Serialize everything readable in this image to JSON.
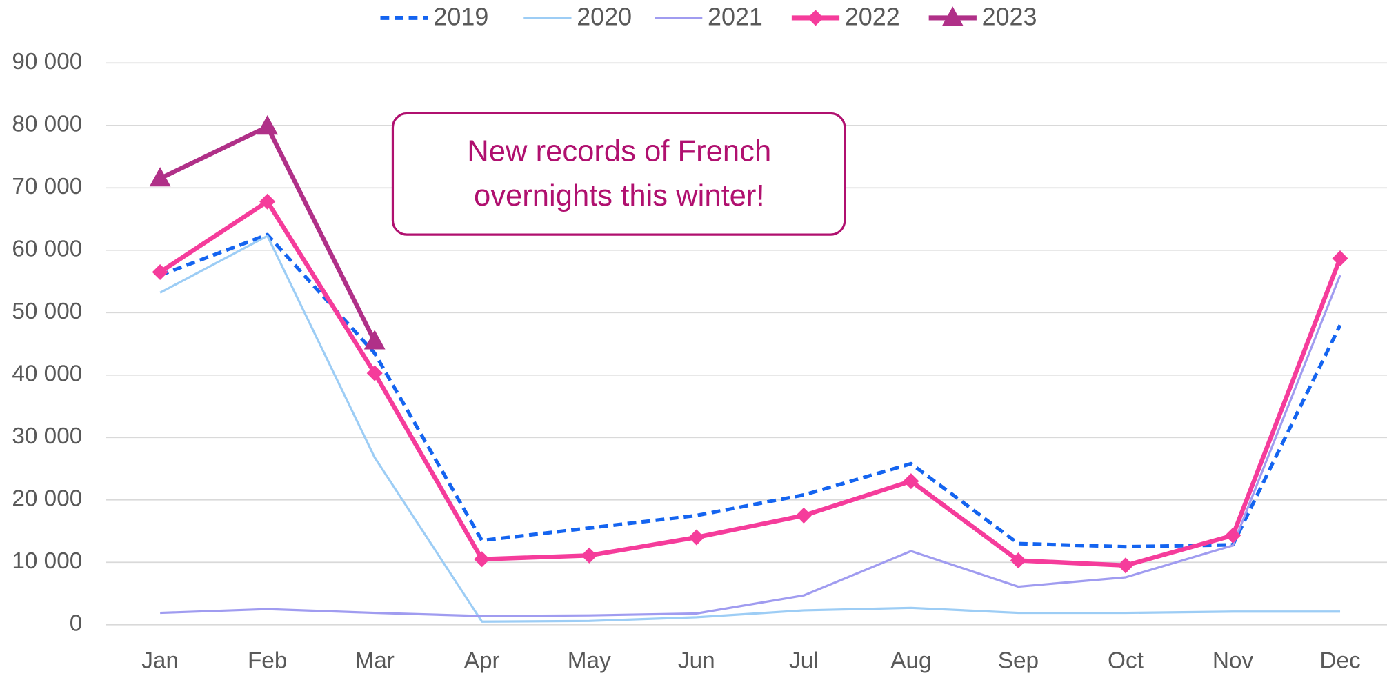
{
  "chart_data": {
    "type": "line",
    "categories": [
      "Jan",
      "Feb",
      "Mar",
      "Apr",
      "May",
      "Jun",
      "Jul",
      "Aug",
      "Sep",
      "Oct",
      "Nov",
      "Dec"
    ],
    "series": [
      {
        "name": "2019",
        "color": "#1464f0",
        "line_style": "dashed",
        "marker": "none",
        "values": [
          56000,
          62500,
          43500,
          13500,
          15500,
          17500,
          20800,
          25800,
          13000,
          12500,
          12800,
          48000
        ]
      },
      {
        "name": "2020",
        "color": "#9dcdf5",
        "line_style": "solid",
        "marker": "none",
        "values": [
          53200,
          62300,
          26800,
          500,
          600,
          1200,
          2300,
          2700,
          1900,
          1900,
          2100,
          2100
        ]
      },
      {
        "name": "2021",
        "color": "#a09cf0",
        "line_style": "solid",
        "marker": "none",
        "values": [
          1900,
          2500,
          1900,
          1400,
          1500,
          1800,
          4700,
          11800,
          6100,
          7600,
          12700,
          56000
        ]
      },
      {
        "name": "2022",
        "color": "#f53c9b",
        "line_style": "solid",
        "marker": "diamond",
        "values": [
          56500,
          67800,
          40300,
          10500,
          11100,
          14000,
          17500,
          23000,
          10300,
          9500,
          14300,
          58700
        ]
      },
      {
        "name": "2023",
        "color": "#b03088",
        "line_style": "solid",
        "marker": "triangle",
        "values": [
          71500,
          79800,
          45400,
          null,
          null,
          null,
          null,
          null,
          null,
          null,
          null,
          null
        ]
      }
    ],
    "ylim": [
      0,
      90000
    ],
    "yticks": [
      0,
      {
        "value": 10000,
        "label": "10 000"
      },
      {
        "value": 20000,
        "label": "20 000"
      },
      {
        "value": 30000,
        "label": "30 000"
      },
      {
        "value": 40000,
        "label": "40 000"
      },
      {
        "value": 50000,
        "label": "50 000"
      },
      {
        "value": 60000,
        "label": "60 000"
      },
      {
        "value": 70000,
        "label": "70 000"
      },
      {
        "value": 80000,
        "label": "80 000"
      },
      {
        "value": 90000,
        "label": "90 000"
      }
    ],
    "grid": true,
    "legend": "top",
    "annotation": {
      "lines": [
        "New records of French",
        "overnights this winter!"
      ],
      "color": "#b0106f"
    }
  }
}
